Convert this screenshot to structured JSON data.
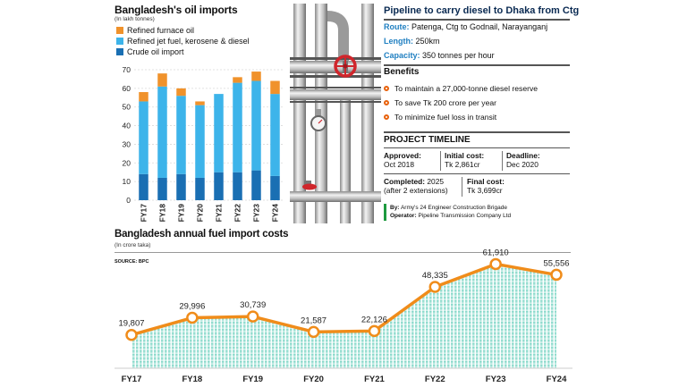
{
  "oil_chart": {
    "title": "Bangladesh's oil imports",
    "unit_note": "(In lakh tonnes)",
    "colors": {
      "refined_furnace": "#f0922b",
      "refined_jet": "#3db4ea",
      "crude": "#1a6fb3"
    }
  },
  "fuel_cost_chart": {
    "title": "Bangladesh annual fuel import costs",
    "unit_note": "(In crore taka)",
    "source": "SOURCE: BPC",
    "colors": {
      "line": "#f08c1a",
      "fill_top": "#7fd6c6",
      "fill_bottom": "#d8f3ee"
    }
  },
  "pipeline": {
    "title": "Pipeline to carry diesel to Dhaka from Ctg",
    "route_label": "Route:",
    "route_value": "Patenga, Ctg to Godnail, Narayanganj",
    "length_label": "Length:",
    "length_value": "250km",
    "capacity_label": "Capacity:",
    "capacity_value": "350 tonnes per hour",
    "benefits_title": "Benefits",
    "benefits": [
      "To maintain a 27,000-tonne diesel reserve",
      "To save Tk 200 crore per year",
      "To minimize fuel loss in transit"
    ],
    "timeline_title": "PROJECT TIMELINE",
    "approved_label": "Approved:",
    "approved_value": "Oct 2018",
    "initial_cost_label": "Initial cost:",
    "initial_cost_value": "Tk 2,861cr",
    "deadline_label": "Deadline:",
    "deadline_value": "Dec 2020",
    "completed_label": "Completed:",
    "completed_value": "2025",
    "completed_note": "(after 2 extensions)",
    "final_cost_label": "Final cost:",
    "final_cost_value": "Tk 3,699cr",
    "by_label": "By:",
    "by_value": "Army's 24 Engineer Construction Brigade",
    "operator_label": "Operator:",
    "operator_value": "Pipeline Transmission Company Ltd"
  },
  "chart_data": [
    {
      "type": "bar",
      "stacked": true,
      "title": "Bangladesh's oil imports",
      "ylabel": "In lakh tonnes",
      "categories": [
        "FY17",
        "FY18",
        "FY19",
        "FY20",
        "FY21",
        "FY22",
        "FY23",
        "FY24"
      ],
      "ylim": [
        0,
        70
      ],
      "yticks": [
        0,
        10,
        20,
        30,
        40,
        50,
        60,
        70
      ],
      "series": [
        {
          "name": "Crude oil import",
          "values": [
            14,
            12,
            14,
            12,
            15,
            15,
            16,
            13
          ]
        },
        {
          "name": "Refined jet fuel, kerosene & diesel",
          "values": [
            39,
            49,
            42,
            39,
            42,
            48,
            48,
            44
          ]
        },
        {
          "name": "Refined furnace oil",
          "values": [
            5,
            7,
            4,
            2,
            0,
            3,
            5,
            7
          ]
        }
      ]
    },
    {
      "type": "area",
      "title": "Bangladesh annual fuel import costs",
      "ylabel": "In crore taka",
      "x": [
        "FY17",
        "FY18",
        "FY19",
        "FY20",
        "FY21",
        "FY22",
        "FY23",
        "FY24"
      ],
      "values": [
        19807,
        29996,
        30739,
        21587,
        22126,
        48335,
        61910,
        55556
      ],
      "labels": [
        "19,807",
        "29,996",
        "30,739",
        "21,587",
        "22,126",
        "48,335",
        "61,910",
        "55,556"
      ],
      "ylim": [
        0,
        68000
      ]
    }
  ]
}
